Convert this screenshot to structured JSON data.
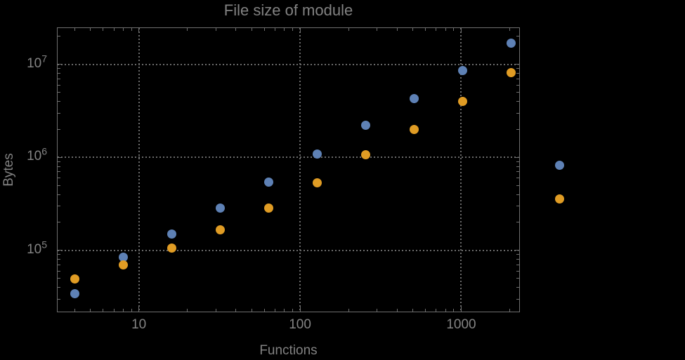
{
  "chart_data": {
    "type": "scatter",
    "title": "File size of module",
    "xlabel": "Functions",
    "ylabel": "Bytes",
    "x_scale": "log",
    "y_scale": "log",
    "xlim": [
      3.1,
      2290
    ],
    "ylim": [
      22000,
      25000000
    ],
    "grid": true,
    "grid_style": "dotted",
    "legend": "none",
    "x_ticks": [
      {
        "value": 10,
        "label": "10"
      },
      {
        "value": 100,
        "label": "100"
      },
      {
        "value": 1000,
        "label": "1000"
      }
    ],
    "y_ticks": [
      {
        "value": 100000,
        "base": "10",
        "exponent": "5"
      },
      {
        "value": 1000000,
        "base": "10",
        "exponent": "6"
      },
      {
        "value": 10000000,
        "base": "10",
        "exponent": "7"
      }
    ],
    "x": [
      4,
      8,
      16,
      32,
      64,
      128,
      256,
      512,
      1024,
      2048,
      4096
    ],
    "series": [
      {
        "name": "series-1",
        "key": "blue",
        "color": "#5E81B5",
        "values": [
          34000,
          85000,
          150000,
          286000,
          545000,
          1090000,
          2220000,
          4300000,
          8630000,
          17000000,
          826000
        ]
      },
      {
        "name": "series-2",
        "key": "orange",
        "color": "#E09C24",
        "values": [
          49000,
          70000,
          106000,
          167000,
          286000,
          535000,
          1070000,
          2000000,
          4020000,
          8190000,
          359000
        ]
      }
    ]
  },
  "colors": {
    "background": "#000000",
    "frame": "#6F6F6F",
    "grid": "#6A6A6A",
    "text": "#848484",
    "series_blue": "#5E81B5",
    "series_orange": "#E09C24"
  }
}
